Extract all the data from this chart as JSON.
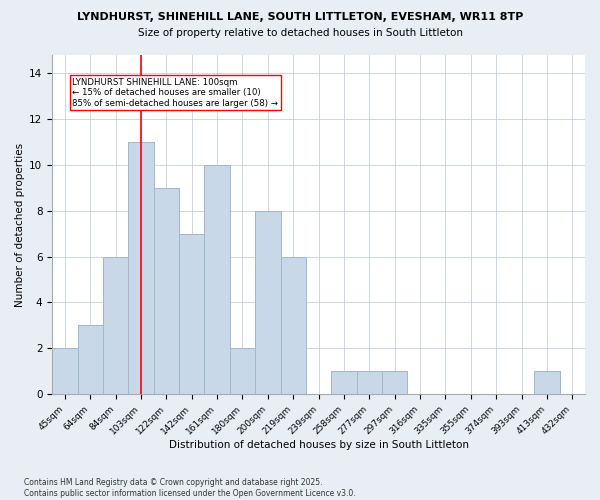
{
  "title_line1": "LYNDHURST, SHINEHILL LANE, SOUTH LITTLETON, EVESHAM, WR11 8TP",
  "title_line2": "Size of property relative to detached houses in South Littleton",
  "xlabel": "Distribution of detached houses by size in South Littleton",
  "ylabel": "Number of detached properties",
  "bar_labels": [
    "45sqm",
    "64sqm",
    "84sqm",
    "103sqm",
    "122sqm",
    "142sqm",
    "161sqm",
    "180sqm",
    "200sqm",
    "219sqm",
    "239sqm",
    "258sqm",
    "277sqm",
    "297sqm",
    "316sqm",
    "335sqm",
    "355sqm",
    "374sqm",
    "393sqm",
    "413sqm",
    "432sqm"
  ],
  "bar_values": [
    2,
    3,
    6,
    11,
    9,
    7,
    10,
    2,
    8,
    6,
    0,
    1,
    1,
    1,
    0,
    0,
    0,
    0,
    0,
    1,
    0
  ],
  "bar_color": "#c8d8e8",
  "bar_edge_color": "#a0b8cc",
  "vline_x": 3,
  "vline_color": "red",
  "annotation_text": "LYNDHURST SHINEHILL LANE: 100sqm\n← 15% of detached houses are smaller (10)\n85% of semi-detached houses are larger (58) →",
  "ylim": [
    0,
    14.8
  ],
  "yticks": [
    0,
    2,
    4,
    6,
    8,
    10,
    12,
    14
  ],
  "footer_line1": "Contains HM Land Registry data © Crown copyright and database right 2025.",
  "footer_line2": "Contains public sector information licensed under the Open Government Licence v3.0.",
  "bg_color": "#e8eef4",
  "plot_bg_color": "#ffffff",
  "grid_color": "#c8d0d8"
}
